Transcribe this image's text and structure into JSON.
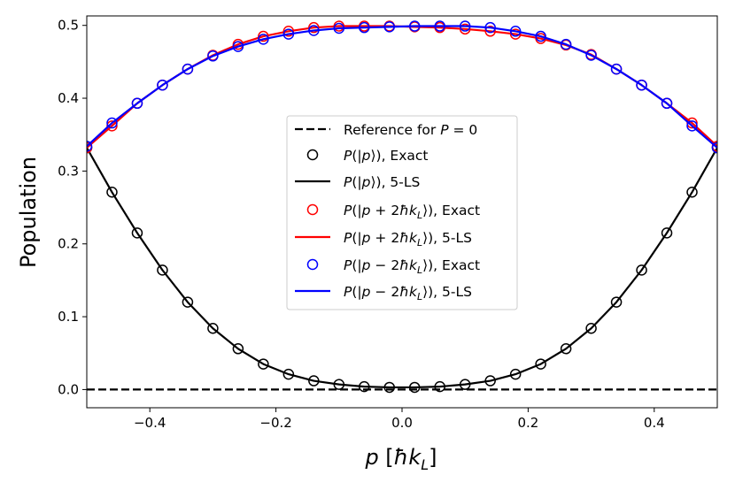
{
  "chart_data": {
    "type": "line",
    "xlabel": "p [ħk_L]",
    "ylabel": "Population",
    "xlim": [
      -0.5,
      0.5
    ],
    "ylim": [
      -0.025,
      0.513
    ],
    "xticks": [
      -0.4,
      -0.2,
      0.0,
      0.2,
      0.4
    ],
    "xtick_labels": [
      "−0.4",
      "−0.2",
      "0.0",
      "0.2",
      "0.4"
    ],
    "yticks": [
      0.0,
      0.1,
      0.2,
      0.3,
      0.4,
      0.5
    ],
    "ytick_labels": [
      "0.0",
      "0.1",
      "0.2",
      "0.3",
      "0.4",
      "0.5"
    ],
    "grid": false,
    "legend_position": "center",
    "x_points": [
      -0.5,
      -0.46,
      -0.42,
      -0.38,
      -0.34,
      -0.3,
      -0.26,
      -0.22,
      -0.18,
      -0.14,
      -0.1,
      -0.06,
      -0.02,
      0.02,
      0.06,
      0.1,
      0.14,
      0.18,
      0.22,
      0.26,
      0.3,
      0.34,
      0.38,
      0.42,
      0.46,
      0.5
    ],
    "series": [
      {
        "name": "Reference for P = 0",
        "style": "dashed",
        "color": "#000000",
        "x": [
          -0.5,
          0.5
        ],
        "values": [
          0.0,
          0.0
        ]
      },
      {
        "name": "P(|p⟩), Exact",
        "style": "markers",
        "color": "#000000",
        "values": [
          0.332,
          0.271,
          0.215,
          0.164,
          0.12,
          0.084,
          0.056,
          0.035,
          0.021,
          0.012,
          0.007,
          0.004,
          0.003,
          0.003,
          0.004,
          0.007,
          0.012,
          0.021,
          0.035,
          0.056,
          0.084,
          0.12,
          0.164,
          0.215,
          0.271,
          0.332
        ]
      },
      {
        "name": "P(|p⟩), 5-LS",
        "style": "solid",
        "color": "#000000",
        "values": [
          0.332,
          0.271,
          0.215,
          0.164,
          0.12,
          0.084,
          0.056,
          0.035,
          0.021,
          0.012,
          0.007,
          0.004,
          0.003,
          0.003,
          0.004,
          0.007,
          0.012,
          0.021,
          0.035,
          0.056,
          0.084,
          0.12,
          0.164,
          0.215,
          0.271,
          0.332
        ]
      },
      {
        "name": "P(|p + 2ħk_L⟩), Exact",
        "style": "markers",
        "color": "#ff0000",
        "values": [
          0.332,
          0.362,
          0.393,
          0.418,
          0.44,
          0.459,
          0.474,
          0.485,
          0.492,
          0.497,
          0.499,
          0.499,
          0.499,
          0.498,
          0.497,
          0.495,
          0.492,
          0.488,
          0.482,
          0.473,
          0.46,
          0.44,
          0.418,
          0.393,
          0.366,
          0.334
        ]
      },
      {
        "name": "P(|p + 2ħk_L⟩), 5-LS",
        "style": "solid",
        "color": "#ff0000",
        "values": [
          0.332,
          0.362,
          0.393,
          0.418,
          0.44,
          0.459,
          0.474,
          0.485,
          0.492,
          0.497,
          0.499,
          0.499,
          0.499,
          0.498,
          0.497,
          0.495,
          0.492,
          0.488,
          0.482,
          0.473,
          0.46,
          0.44,
          0.418,
          0.393,
          0.366,
          0.334
        ]
      },
      {
        "name": "P(|p − 2ħk_L⟩), Exact",
        "style": "markers",
        "color": "#0000ff",
        "values": [
          0.334,
          0.366,
          0.393,
          0.418,
          0.44,
          0.458,
          0.471,
          0.481,
          0.488,
          0.493,
          0.496,
          0.497,
          0.498,
          0.499,
          0.499,
          0.499,
          0.497,
          0.492,
          0.485,
          0.474,
          0.459,
          0.44,
          0.418,
          0.393,
          0.362,
          0.332
        ]
      },
      {
        "name": "P(|p − 2ħk_L⟩), 5-LS",
        "style": "solid",
        "color": "#0000ff",
        "values": [
          0.334,
          0.366,
          0.393,
          0.418,
          0.44,
          0.458,
          0.471,
          0.481,
          0.488,
          0.493,
          0.496,
          0.497,
          0.498,
          0.499,
          0.499,
          0.499,
          0.497,
          0.492,
          0.485,
          0.474,
          0.459,
          0.44,
          0.418,
          0.393,
          0.362,
          0.332
        ]
      }
    ]
  }
}
